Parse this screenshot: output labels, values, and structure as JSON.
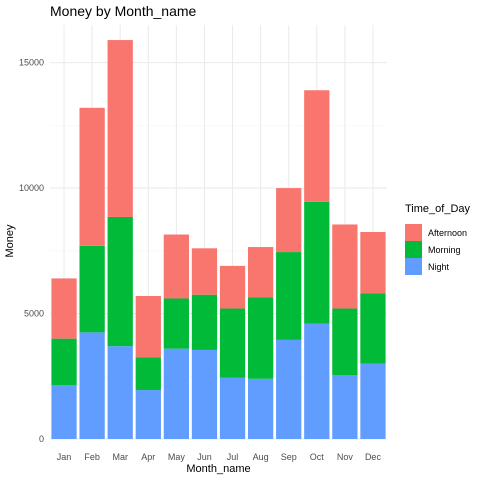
{
  "chart_data": {
    "type": "bar",
    "stacked": true,
    "title": "Money by Month_name",
    "xlabel": "Month_name",
    "ylabel": "Money",
    "ylim": [
      0,
      16500
    ],
    "yticks": [
      0,
      5000,
      10000,
      15000
    ],
    "grid": true,
    "legend_position": "right",
    "legend_title": "Time_of_Day",
    "categories": [
      "Jan",
      "Feb",
      "Mar",
      "Apr",
      "May",
      "Jun",
      "Jul",
      "Aug",
      "Sep",
      "Oct",
      "Nov",
      "Dec"
    ],
    "series": [
      {
        "name": "Night",
        "color": "#619CFF",
        "values": [
          2150,
          4250,
          3700,
          1950,
          3600,
          3550,
          2450,
          2400,
          3950,
          4600,
          2550,
          3000
        ]
      },
      {
        "name": "Morning",
        "color": "#00BA38",
        "values": [
          1850,
          3450,
          5150,
          1300,
          2000,
          2200,
          2750,
          3250,
          3500,
          4850,
          2650,
          2800
        ]
      },
      {
        "name": "Afternoon",
        "color": "#F8766D",
        "values": [
          2400,
          5500,
          7050,
          2450,
          2550,
          1850,
          1700,
          2000,
          2550,
          4450,
          3350,
          2450
        ]
      }
    ],
    "legend_order": [
      "Afternoon",
      "Morning",
      "Night"
    ]
  }
}
